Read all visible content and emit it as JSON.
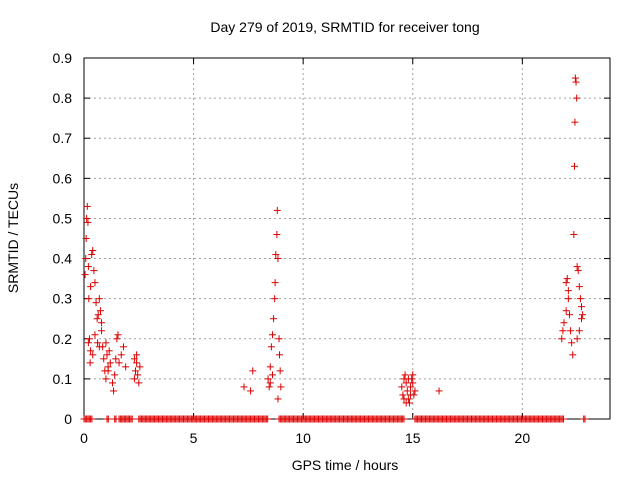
{
  "chart_data": {
    "type": "scatter",
    "title": "Day 279 of 2019, SRMTID for receiver tong",
    "xlabel": "GPS time / hours",
    "ylabel": "SRMTID / TECUs",
    "xlim": [
      0,
      24
    ],
    "ylim": [
      0,
      0.9
    ],
    "xticks": [
      0,
      5,
      10,
      15,
      20
    ],
    "yticks": [
      0,
      0.1,
      0.2,
      0.3,
      0.4,
      0.5,
      0.6,
      0.7,
      0.8,
      0.9
    ],
    "xtick_labels": [
      "0",
      "5",
      "10",
      "15",
      "20"
    ],
    "ytick_labels": [
      "0",
      "0.1",
      "0.2",
      "0.3",
      "0.4",
      "0.5",
      "0.6",
      "0.7",
      "0.8",
      "0.9"
    ],
    "grid": true,
    "marker": "+",
    "color": "#dd0000",
    "series": [
      {
        "name": "SRMTID",
        "points": [
          [
            0.05,
            0.36
          ],
          [
            0.08,
            0.4
          ],
          [
            0.1,
            0.45
          ],
          [
            0.12,
            0.5
          ],
          [
            0.15,
            0.53
          ],
          [
            0.18,
            0.49
          ],
          [
            0.2,
            0.38
          ],
          [
            0.22,
            0.3
          ],
          [
            0.25,
            0.2
          ],
          [
            0.28,
            0.14
          ],
          [
            0.3,
            0.33
          ],
          [
            0.35,
            0.41
          ],
          [
            0.4,
            0.42
          ],
          [
            0.45,
            0.37
          ],
          [
            0.5,
            0.34
          ],
          [
            0.55,
            0.29
          ],
          [
            0.6,
            0.25
          ],
          [
            0.62,
            0.19
          ],
          [
            0.65,
            0.26
          ],
          [
            0.7,
            0.3
          ],
          [
            0.75,
            0.27
          ],
          [
            0.8,
            0.22
          ],
          [
            0.85,
            0.18
          ],
          [
            0.9,
            0.15
          ],
          [
            0.95,
            0.12
          ],
          [
            1.0,
            0.19
          ],
          [
            1.05,
            0.16
          ],
          [
            1.1,
            0.13
          ],
          [
            1.15,
            0.17
          ],
          [
            1.2,
            0.14
          ],
          [
            0.2,
            0.19
          ],
          [
            0.3,
            0.17
          ],
          [
            0.4,
            0.16
          ],
          [
            0.5,
            0.21
          ],
          [
            0.7,
            0.18
          ],
          [
            0.8,
            0.24
          ],
          [
            1.0,
            0.1
          ],
          [
            1.1,
            0.12
          ],
          [
            1.3,
            0.09
          ],
          [
            1.35,
            0.07
          ],
          [
            1.4,
            0.11
          ],
          [
            1.45,
            0.15
          ],
          [
            1.5,
            0.2
          ],
          [
            1.55,
            0.21
          ],
          [
            1.6,
            0.14
          ],
          [
            1.7,
            0.16
          ],
          [
            1.8,
            0.18
          ],
          [
            1.9,
            0.13
          ],
          [
            2.3,
            0.1
          ],
          [
            2.35,
            0.12
          ],
          [
            2.4,
            0.14
          ],
          [
            2.45,
            0.11
          ],
          [
            2.5,
            0.09
          ],
          [
            2.55,
            0.13
          ],
          [
            2.3,
            0.15
          ],
          [
            2.4,
            0.16
          ],
          [
            7.3,
            0.08
          ],
          [
            7.6,
            0.07
          ],
          [
            7.7,
            0.12
          ],
          [
            8.4,
            0.1
          ],
          [
            8.45,
            0.08
          ],
          [
            8.5,
            0.13
          ],
          [
            8.55,
            0.18
          ],
          [
            8.6,
            0.21
          ],
          [
            8.65,
            0.25
          ],
          [
            8.7,
            0.3
          ],
          [
            8.72,
            0.34
          ],
          [
            8.75,
            0.41
          ],
          [
            8.8,
            0.46
          ],
          [
            8.82,
            0.52
          ],
          [
            8.85,
            0.4
          ],
          [
            8.9,
            0.2
          ],
          [
            8.92,
            0.16
          ],
          [
            8.95,
            0.12
          ],
          [
            8.98,
            0.08
          ],
          [
            8.85,
            0.05
          ],
          [
            8.5,
            0.09
          ],
          [
            8.6,
            0.11
          ],
          [
            14.5,
            0.08
          ],
          [
            14.55,
            0.06
          ],
          [
            14.6,
            0.1
          ],
          [
            14.65,
            0.11
          ],
          [
            14.7,
            0.09
          ],
          [
            14.75,
            0.07
          ],
          [
            14.8,
            0.05
          ],
          [
            14.85,
            0.04
          ],
          [
            14.9,
            0.08
          ],
          [
            14.95,
            0.1
          ],
          [
            15.0,
            0.09
          ],
          [
            15.05,
            0.06
          ],
          [
            15.1,
            0.07
          ],
          [
            14.6,
            0.05
          ],
          [
            14.7,
            0.04
          ],
          [
            14.8,
            0.1
          ],
          [
            14.9,
            0.06
          ],
          [
            15.0,
            0.11
          ],
          [
            16.2,
            0.07
          ],
          [
            21.8,
            0.2
          ],
          [
            21.85,
            0.22
          ],
          [
            21.9,
            0.24
          ],
          [
            22.0,
            0.34
          ],
          [
            22.05,
            0.35
          ],
          [
            22.1,
            0.3
          ],
          [
            22.15,
            0.26
          ],
          [
            22.2,
            0.22
          ],
          [
            22.25,
            0.19
          ],
          [
            22.3,
            0.16
          ],
          [
            22.35,
            0.46
          ],
          [
            22.38,
            0.63
          ],
          [
            22.4,
            0.74
          ],
          [
            22.42,
            0.85
          ],
          [
            22.45,
            0.84
          ],
          [
            22.48,
            0.8
          ],
          [
            22.5,
            0.38
          ],
          [
            22.55,
            0.37
          ],
          [
            22.6,
            0.33
          ],
          [
            22.65,
            0.3
          ],
          [
            22.7,
            0.28
          ],
          [
            22.75,
            0.26
          ],
          [
            22.6,
            0.22
          ],
          [
            22.5,
            0.2
          ],
          [
            22.0,
            0.27
          ],
          [
            22.1,
            0.32
          ],
          [
            22.7,
            0.25
          ]
        ],
        "baseline_zero_intervals": [
          [
            0.0,
            0.4
          ],
          [
            1.05,
            1.15
          ],
          [
            1.4,
            1.5
          ],
          [
            1.6,
            2.2
          ],
          [
            2.5,
            8.4
          ],
          [
            8.9,
            14.6
          ],
          [
            15.1,
            21.9
          ],
          [
            22.8,
            22.9
          ]
        ]
      }
    ]
  }
}
